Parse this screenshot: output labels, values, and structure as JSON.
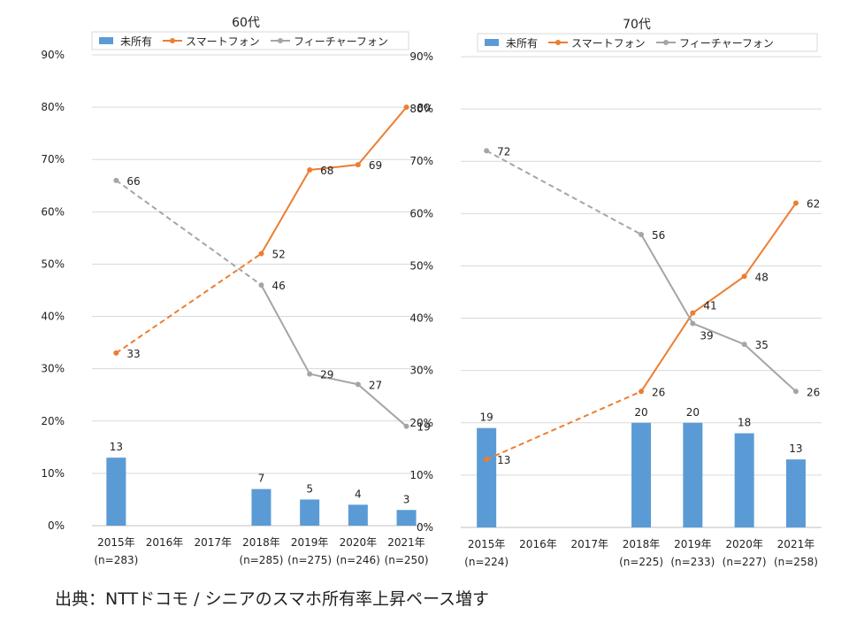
{
  "caption": "出典：NTTドコモ / シニアのスマホ所有率上昇ペース増す",
  "colors": {
    "none": "#5b9bd5",
    "smartphone": "#ed7d31",
    "feature": "#a5a5a5",
    "grid": "#d9d9d9",
    "axis": "#bfbfbf"
  },
  "chart_data": [
    {
      "type": "bar+line",
      "title": "60代",
      "legend_position": "top",
      "y_ticks": [
        "0%",
        "10%",
        "20%",
        "30%",
        "40%",
        "50%",
        "60%",
        "70%",
        "80%",
        "90%"
      ],
      "ylim": [
        0,
        90
      ],
      "grid": true,
      "categories": [
        "2015年",
        "2016年",
        "2017年",
        "2018年",
        "2019年",
        "2020年",
        "2021年"
      ],
      "n_labels": [
        "(n=283)",
        "",
        "",
        "(n=285)",
        "(n=275)",
        "(n=246)",
        "(n=250)"
      ],
      "series": [
        {
          "name": "未所有",
          "kind": "bar",
          "color": "#5b9bd5",
          "values": [
            13,
            null,
            null,
            7,
            5,
            4,
            3
          ]
        },
        {
          "name": "スマートフォン",
          "kind": "line",
          "color": "#ed7d31",
          "values": [
            33,
            null,
            null,
            52,
            68,
            69,
            80
          ]
        },
        {
          "name": "フィーチャーフォン",
          "kind": "line",
          "color": "#a5a5a5",
          "values": [
            66,
            null,
            null,
            46,
            29,
            27,
            19
          ]
        }
      ]
    },
    {
      "type": "bar+line",
      "title": "70代",
      "legend_position": "top",
      "y_ticks": [
        "0%",
        "10%",
        "20%",
        "30%",
        "40%",
        "50%",
        "60%",
        "70%",
        "80%",
        "90%"
      ],
      "ylim": [
        0,
        90
      ],
      "grid": true,
      "categories": [
        "2015年",
        "2016年",
        "2017年",
        "2018年",
        "2019年",
        "2020年",
        "2021年"
      ],
      "n_labels": [
        "(n=224)",
        "",
        "",
        "(n=225)",
        "(n=233)",
        "(n=227)",
        "(n=258)"
      ],
      "series": [
        {
          "name": "未所有",
          "kind": "bar",
          "color": "#5b9bd5",
          "values": [
            19,
            null,
            null,
            20,
            20,
            18,
            13
          ]
        },
        {
          "name": "スマートフォン",
          "kind": "line",
          "color": "#ed7d31",
          "values": [
            13,
            null,
            null,
            26,
            41,
            48,
            62
          ]
        },
        {
          "name": "フィーチャーフォン",
          "kind": "line",
          "color": "#a5a5a5",
          "values": [
            72,
            null,
            null,
            56,
            39,
            35,
            26
          ]
        }
      ]
    }
  ]
}
